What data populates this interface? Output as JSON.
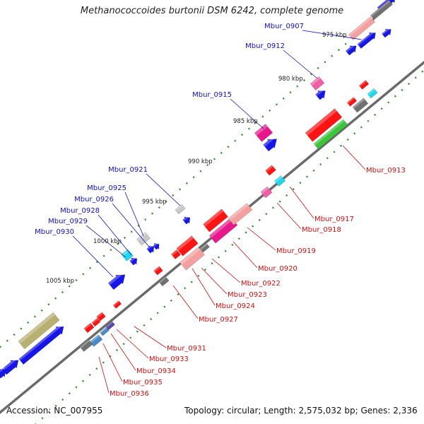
{
  "title": "Methanococcoides burtonii DSM 6242, complete genome",
  "accession": "Accession: NC_007955",
  "topology": "Topology: circular; Length: 2,575,032 bp; Genes: 2,336",
  "colors": {
    "forward_label": "#1010c0",
    "reverse_label": "#d01010",
    "backbone": "#6a6a6a",
    "tick": "#2c8c2c",
    "cds_blue": "#1616e8",
    "cds_red": "#ff1414",
    "trna_pink": "#f060a8",
    "rrna_salmon": "#f4a0a0",
    "hypo_gray": "#707070",
    "light_gray": "#c8c8c8",
    "cyan": "#22d8e8",
    "green": "#3cc43c",
    "olive": "#b8b070",
    "steel": "#4a88c8",
    "purple": "#5848a8",
    "magenta": "#e8188c"
  },
  "scale_labels": [
    "975 kbp",
    "980 kbp",
    "985 kbp",
    "990 kbp",
    "995 kbp",
    "1000 kbp",
    "1005 kbp"
  ],
  "forward_genes": [
    "Mbur_0907",
    "Mbur_0912",
    "Mbur_0915",
    "Mbur_0921",
    "Mbur_0925",
    "Mbur_0926",
    "Mbur_0928",
    "Mbur_0929",
    "Mbur_0930"
  ],
  "reverse_genes": [
    "Mbur_0913",
    "Mbur_0917",
    "Mbur_0918",
    "Mbur_0919",
    "Mbur_0920",
    "Mbur_0922",
    "Mbur_0923",
    "Mbur_0924",
    "Mbur_0927",
    "Mbur_0931",
    "Mbur_0933",
    "Mbur_0934",
    "Mbur_0935",
    "Mbur_0936"
  ]
}
